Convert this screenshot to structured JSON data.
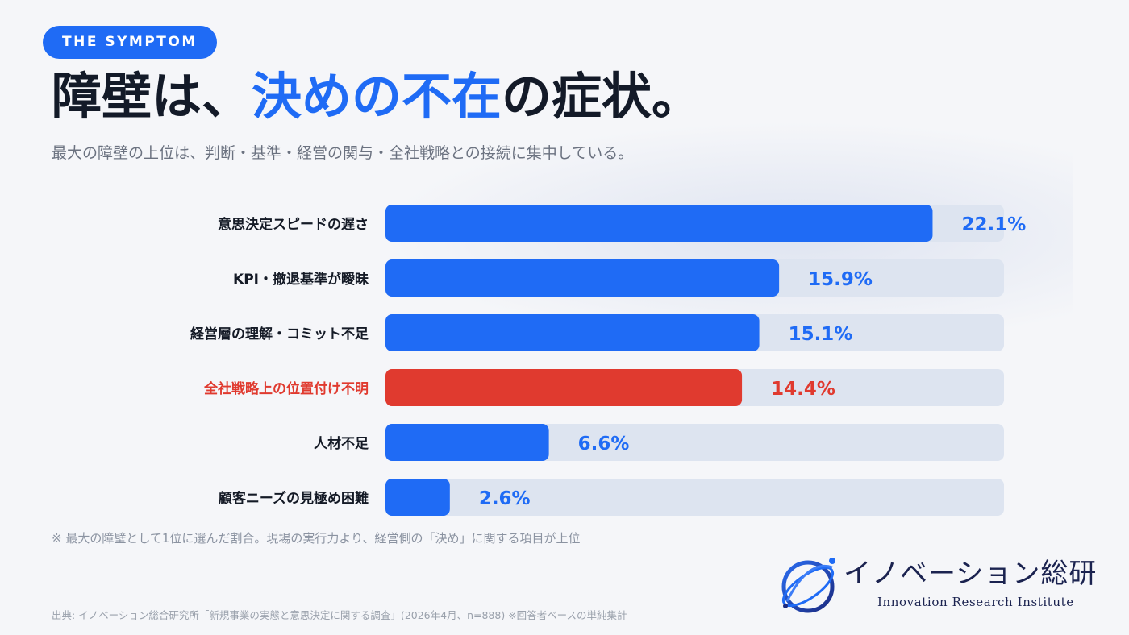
{
  "header": {
    "tag": "THE SYMPTOM",
    "title_parts": [
      "障壁は、",
      "決めの不在",
      "の症状。"
    ],
    "subtitle": "最大の障壁の上位は、判断・基準・経営の関与・全社戦略との接続に集中している。"
  },
  "chart_data": {
    "type": "bar",
    "orientation": "horizontal",
    "categories": [
      "意思決定スピードの遅さ",
      "KPI・撤退基準が曖昧",
      "経営層の理解・コミット不足",
      "全社戦略上の位置付け不明",
      "人材不足",
      "顧客ニーズの見極め困難"
    ],
    "values": [
      22.1,
      15.9,
      15.1,
      14.4,
      6.6,
      2.6
    ],
    "labels": [
      "22.1%",
      "15.9%",
      "15.1%",
      "14.4%",
      "6.6%",
      "2.6%"
    ],
    "highlight_index": 3,
    "xlim": [
      0,
      25
    ],
    "colors": {
      "bar": "#1f6bf5",
      "highlight": "#e03a2f",
      "track": "#dde4f0",
      "label_dark": "#141a26"
    }
  },
  "footer": {
    "note": "※ 最大の障壁として1位に選んだ割合。現場の実行力より、経営側の「決め」に関する項目が上位",
    "source": "出典: イノベーション総合研究所「新規事業の実態と意思決定に関する調査」(2026年4月、n=888) ※回答者ベースの単純集計"
  },
  "logo": {
    "name": "イノベーション総研",
    "subtitle": "Innovation Research Institute",
    "icon": "orbit-globe-icon"
  }
}
